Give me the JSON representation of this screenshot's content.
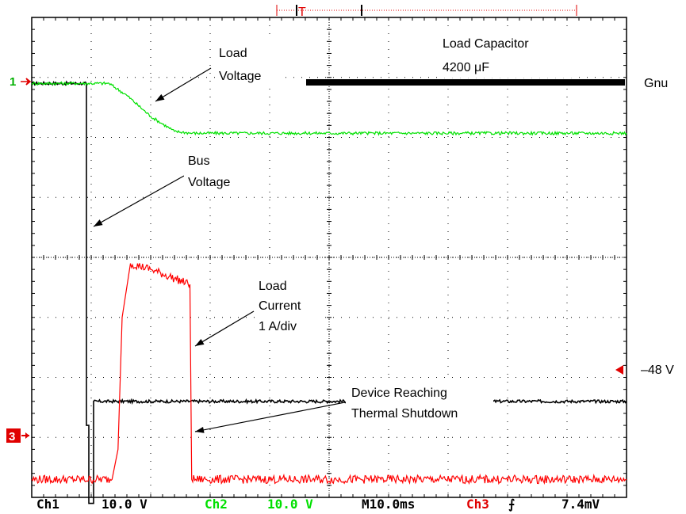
{
  "chart_data": {
    "type": "line",
    "title": "",
    "xlabel": "",
    "ylabel": "",
    "divisions": {
      "x": 10,
      "y": 8
    },
    "grid": true,
    "x_unit": "ms",
    "time_per_div_ms": 10.0,
    "series": [
      {
        "id": "bus",
        "name": "Bus Voltage",
        "color": "#000000",
        "points": [
          [
            0,
            6.9
          ],
          [
            9.2,
            6.9
          ],
          [
            9.2,
            1.2
          ],
          [
            9.6,
            1.2
          ],
          [
            9.6,
            -0.1
          ],
          [
            10.4,
            -0.1
          ],
          [
            10.4,
            1.6
          ],
          [
            100,
            1.6
          ]
        ]
      },
      {
        "id": "load_voltage",
        "name": "Load Voltage",
        "color": "#00e000",
        "points": [
          [
            0,
            6.9
          ],
          [
            13.0,
            6.9
          ],
          [
            16.0,
            6.7
          ],
          [
            20.0,
            6.35
          ],
          [
            24.0,
            6.1
          ],
          [
            27.0,
            6.07
          ],
          [
            100,
            6.07
          ]
        ]
      },
      {
        "id": "load_current",
        "name": "Load Current",
        "color": "#ff0000",
        "points": [
          [
            0,
            0.3
          ],
          [
            13.5,
            0.3
          ],
          [
            14.5,
            0.8
          ],
          [
            15.2,
            3.0
          ],
          [
            16.6,
            3.9
          ],
          [
            20,
            3.8
          ],
          [
            24,
            3.65
          ],
          [
            26.6,
            3.55
          ],
          [
            26.9,
            0.3
          ],
          [
            100,
            0.3
          ]
        ]
      }
    ],
    "annotations": [
      {
        "id": "load_voltage",
        "lines": [
          "Load",
          "Voltage"
        ]
      },
      {
        "id": "load_capacitor",
        "lines": [
          "Load Capacitor",
          "4200 μF"
        ]
      },
      {
        "id": "bus_voltage",
        "lines": [
          "Bus",
          "Voltage"
        ]
      },
      {
        "id": "load_current",
        "lines": [
          "Load",
          "Current",
          "1 A/div"
        ]
      },
      {
        "id": "thermal",
        "lines": [
          "Device Reaching",
          "Thermal Shutdown"
        ]
      }
    ],
    "side_labels": {
      "top": "Gnu",
      "bottom": "–48 V"
    },
    "channel_markers": [
      "1",
      "3"
    ]
  },
  "status": {
    "ch1_label": "Ch1",
    "ch1_scale": "10.0 V",
    "ch2_label": "Ch2",
    "ch2_scale": "10.0 V",
    "timebase": "M10.0ms",
    "ch3_label": "Ch3",
    "trigger_slope": "⨍",
    "trigger_level": "7.4mV"
  },
  "colors": {
    "ch1": "#000000",
    "ch2": "#00e000",
    "ch3": "#ff0000"
  }
}
